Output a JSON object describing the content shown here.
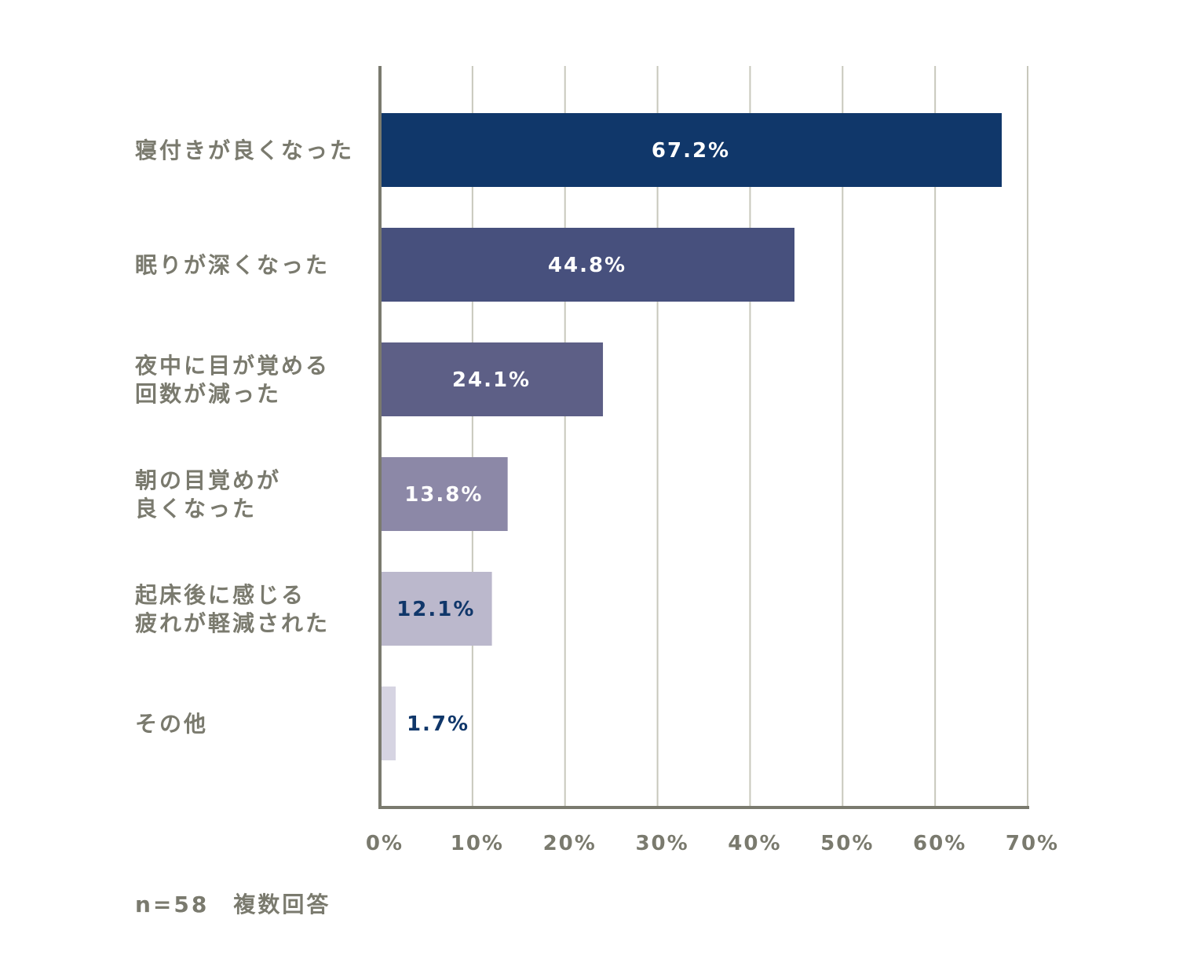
{
  "chart_data": {
    "type": "bar",
    "orientation": "horizontal",
    "categories": [
      [
        "寝付きが良くなった"
      ],
      [
        "眠りが深くなった"
      ],
      [
        "夜中に目が覚める",
        "回数が減った"
      ],
      [
        "朝の目覚めが",
        "良くなった"
      ],
      [
        "起床後に感じる",
        "疲れが軽減された"
      ],
      [
        "その他"
      ]
    ],
    "values": [
      67.2,
      44.8,
      24.1,
      13.8,
      12.1,
      1.7
    ],
    "value_labels": [
      "67.2%",
      "44.8%",
      "24.1%",
      "13.8%",
      "12.1%",
      "1.7%"
    ],
    "bar_colors": [
      "#10376a",
      "#47507d",
      "#5d5f86",
      "#8c88a7",
      "#bbb8cc",
      "#d6d4e2"
    ],
    "value_label_colors": [
      "#ffffff",
      "#ffffff",
      "#ffffff",
      "#ffffff",
      "#10376a",
      "#10376a"
    ],
    "xlim": [
      0,
      70
    ],
    "xticks": [
      0,
      10,
      20,
      30,
      40,
      50,
      60,
      70
    ],
    "xtick_labels": [
      "0%",
      "10%",
      "20%",
      "30%",
      "40%",
      "50%",
      "60%",
      "70%"
    ],
    "grid": true,
    "grid_color": "#c8c8bc",
    "axis_color": "#7a7a6e"
  },
  "note": "n=58　複数回答"
}
